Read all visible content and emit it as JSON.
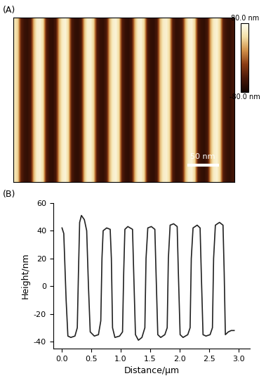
{
  "chart_data": [
    {
      "type": "heatmap",
      "title": "(A)",
      "xlim": [
        0,
        350
      ],
      "ylim": [
        0,
        270
      ],
      "tick_labels": false,
      "cells": [
        [
          55,
          40,
          -40,
          -58,
          -62,
          -50,
          30,
          62,
          66,
          45,
          -42,
          -60,
          -63,
          -48,
          28,
          60,
          68,
          42,
          -45,
          -61,
          -64,
          -50,
          32,
          63,
          65,
          40,
          -44,
          -59,
          -62,
          -47,
          30,
          61,
          67,
          44,
          -43,
          -60,
          -64,
          -49,
          29,
          62,
          66,
          41,
          -46,
          -61,
          -63,
          -48,
          31,
          60,
          65,
          43,
          -44,
          -62,
          -60,
          -47,
          30,
          63,
          67,
          42,
          -45,
          -60,
          -63,
          -50,
          28,
          61,
          66,
          40,
          -43,
          -58,
          -62,
          -52
        ]
      ],
      "colorbar": {
        "range": [
          -80,
          80
        ],
        "ticks": [
          {
            "value": 80,
            "label": "80.0 nm"
          },
          {
            "value": -80,
            "label": "-80.0 nm"
          }
        ]
      },
      "annotations": [
        {
          "text": "50 nm",
          "length": 50
        }
      ]
    },
    {
      "type": "line",
      "title": "(B)",
      "x_label": "Distance/µm",
      "y_label": "Height/nm",
      "x": [
        0.0,
        0.03,
        0.07,
        0.1,
        0.15,
        0.22,
        0.26,
        0.28,
        0.3,
        0.33,
        0.38,
        0.42,
        0.45,
        0.48,
        0.55,
        0.62,
        0.66,
        0.68,
        0.7,
        0.76,
        0.82,
        0.84,
        0.86,
        0.9,
        0.98,
        1.03,
        1.05,
        1.07,
        1.12,
        1.2,
        1.22,
        1.25,
        1.3,
        1.36,
        1.41,
        1.43,
        1.46,
        1.52,
        1.58,
        1.6,
        1.63,
        1.68,
        1.75,
        1.79,
        1.81,
        1.84,
        1.9,
        1.96,
        1.98,
        2.01,
        2.06,
        2.14,
        2.18,
        2.2,
        2.23,
        2.3,
        2.35,
        2.37,
        2.4,
        2.45,
        2.52,
        2.56,
        2.58,
        2.61,
        2.68,
        2.74,
        2.76,
        2.78,
        2.83,
        2.88,
        2.93
      ],
      "values": [
        42,
        38,
        -10,
        -36,
        -37,
        -36,
        -30,
        10,
        46,
        51,
        48,
        40,
        0,
        -33,
        -36,
        -35,
        -25,
        20,
        40,
        42,
        41,
        20,
        -30,
        -37,
        -36,
        -33,
        10,
        41,
        43,
        41,
        10,
        -35,
        -39,
        -37,
        -30,
        20,
        42,
        43,
        41,
        10,
        -35,
        -37,
        -35,
        -30,
        20,
        44,
        45,
        43,
        10,
        -35,
        -37,
        -35,
        -30,
        20,
        42,
        44,
        42,
        10,
        -35,
        -36,
        -35,
        -30,
        20,
        44,
        46,
        44,
        10,
        -35,
        -33,
        -32,
        -32
      ],
      "color": "#222222",
      "xlim": [
        -0.15,
        3.2
      ],
      "ylim": [
        -45,
        60
      ],
      "xticks": [
        {
          "value": 0.0,
          "label": "0.0"
        },
        {
          "value": 0.5,
          "label": "0.5"
        },
        {
          "value": 1.0,
          "label": "1.0"
        },
        {
          "value": 1.5,
          "label": "1.5"
        },
        {
          "value": 2.0,
          "label": "2.0"
        },
        {
          "value": 2.5,
          "label": "2.5"
        },
        {
          "value": 3.0,
          "label": "3.0"
        }
      ],
      "yticks": [
        -40,
        -20,
        0,
        20,
        40,
        60
      ]
    }
  ]
}
